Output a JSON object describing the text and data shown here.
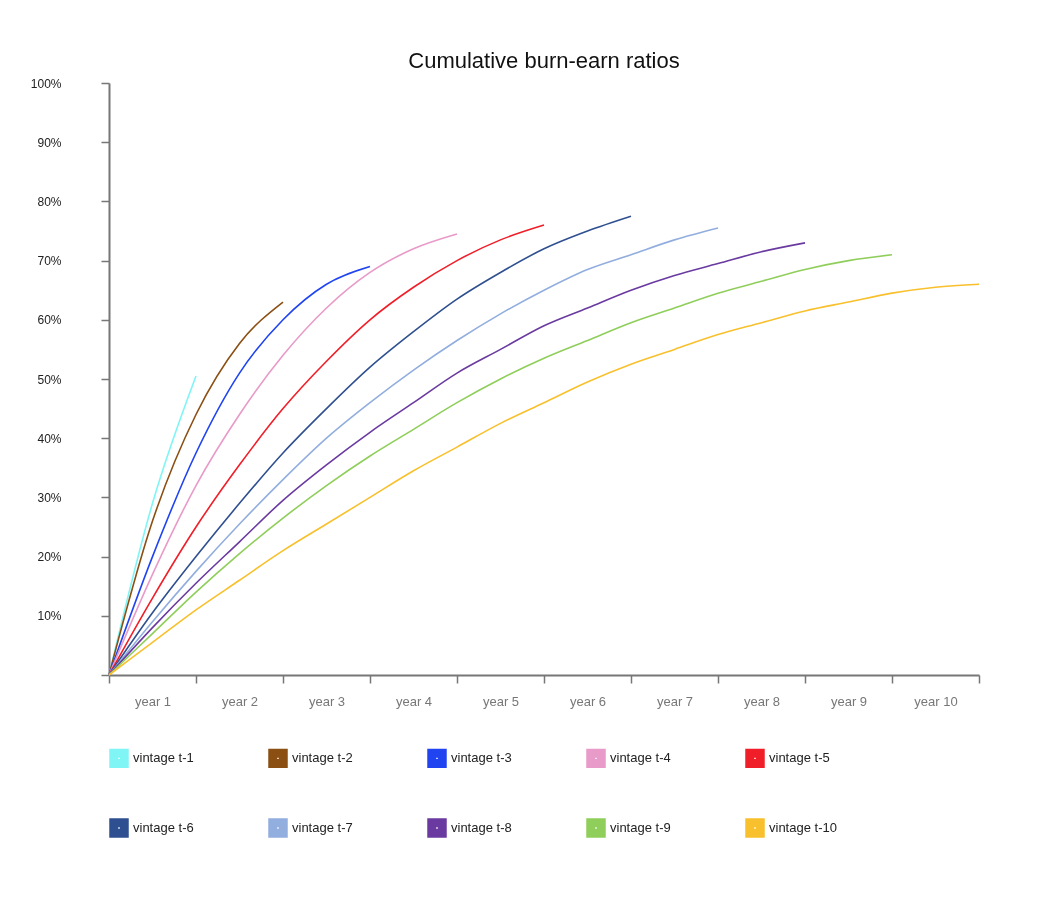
{
  "chart_data": {
    "type": "line",
    "title": "Cumulative burn-earn ratios",
    "categories": [
      null,
      "year 1",
      null,
      "year 2",
      null,
      "year 3",
      null,
      "year 4",
      null,
      "year 5",
      null,
      "year 6",
      null,
      "year 7",
      null,
      "year 8",
      null,
      "year 9",
      null,
      "year 10",
      null
    ],
    "ylim": [
      0,
      100
    ],
    "yticks": [
      {
        "value": 0,
        "label": null
      },
      {
        "value": 10,
        "label": "10%"
      },
      {
        "value": 20,
        "label": "20%"
      },
      {
        "value": 30,
        "label": "30%"
      },
      {
        "value": 40,
        "label": "40%"
      },
      {
        "value": 50,
        "label": "50%"
      },
      {
        "value": 60,
        "label": "60%"
      },
      {
        "value": 70,
        "label": "70%"
      },
      {
        "value": 80,
        "label": "80%"
      },
      {
        "value": 90,
        "label": "90%"
      },
      {
        "value": 100,
        "label": "100%"
      }
    ],
    "grid": false,
    "legend": "bottom",
    "marker": "none",
    "line_style": "solid",
    "series": [
      {
        "name": "vintage t-1",
        "color": "#7ff5f5",
        "values": [
          0,
          29,
          50.5,
          null,
          null,
          null,
          null,
          null,
          null,
          null,
          null,
          null,
          null,
          null,
          null,
          null,
          null,
          null,
          null,
          null,
          null
        ]
      },
      {
        "name": "vintage t-2",
        "color": "#8b4f13",
        "values": [
          0,
          26,
          44,
          56,
          63,
          null,
          null,
          null,
          null,
          null,
          null,
          null,
          null,
          null,
          null,
          null,
          null,
          null,
          null,
          null,
          null
        ]
      },
      {
        "name": "vintage t-3",
        "color": "#1f44f0",
        "values": [
          0,
          20,
          37.5,
          51,
          60,
          66,
          69,
          null,
          null,
          null,
          null,
          null,
          null,
          null,
          null,
          null,
          null,
          null,
          null,
          null,
          null
        ]
      },
      {
        "name": "vintage t-4",
        "color": "#e89ac8",
        "values": [
          0,
          17,
          32,
          44,
          54,
          62,
          68,
          72,
          74.5,
          null,
          null,
          null,
          null,
          null,
          null,
          null,
          null,
          null,
          null,
          null,
          null
        ]
      },
      {
        "name": "vintage t-5",
        "color": "#f01e28",
        "values": [
          0,
          13,
          25,
          35.5,
          45,
          53,
          60,
          65.5,
          70,
          73.5,
          76,
          null,
          null,
          null,
          null,
          null,
          null,
          null,
          null,
          null,
          null
        ]
      },
      {
        "name": "vintage t-6",
        "color": "#2f5090",
        "values": [
          0,
          10.5,
          20,
          29,
          37.5,
          45,
          52,
          58,
          63.5,
          68,
          72,
          75,
          77.5,
          null,
          null,
          null,
          null,
          null,
          null,
          null,
          null
        ]
      },
      {
        "name": "vintage t-7",
        "color": "#92aede",
        "values": [
          0,
          9,
          17.5,
          25.5,
          33,
          40,
          46,
          51.5,
          56.5,
          61,
          65,
          68.5,
          71,
          73.5,
          75.5,
          null,
          null,
          null,
          null,
          null,
          null
        ]
      },
      {
        "name": "vintage t-8",
        "color": "#6a3aa0",
        "values": [
          0,
          8,
          15.5,
          22.5,
          29.5,
          35.5,
          41,
          46,
          51,
          55,
          59,
          62,
          65,
          67.5,
          69.5,
          71.5,
          73,
          null,
          null,
          null,
          null
        ]
      },
      {
        "name": "vintage t-9",
        "color": "#8fce5a",
        "values": [
          0,
          7,
          14,
          20.5,
          26.5,
          32,
          37,
          41.5,
          46,
          50,
          53.5,
          56.5,
          59.5,
          62,
          64.5,
          66.5,
          68.5,
          70,
          71,
          null,
          null
        ]
      },
      {
        "name": "vintage t-10",
        "color": "#f8c02c",
        "values": [
          0,
          5.5,
          11,
          16,
          21,
          25.5,
          30,
          34.5,
          38.5,
          42.5,
          46,
          49.5,
          52.5,
          55,
          57.5,
          59.5,
          61.5,
          63,
          64.5,
          65.5,
          66
        ]
      }
    ]
  }
}
